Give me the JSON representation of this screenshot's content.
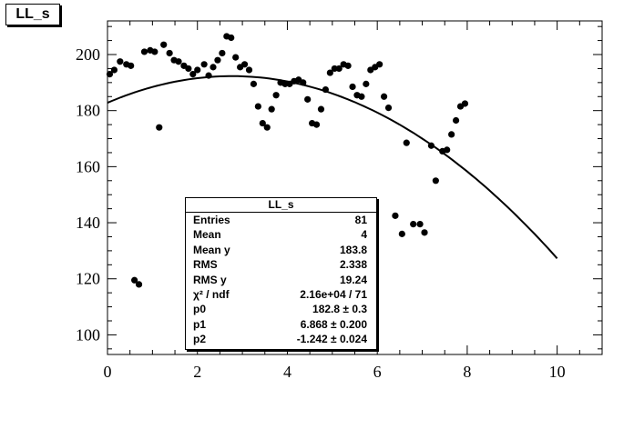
{
  "title": "LL_s",
  "chart_data": {
    "type": "scatter",
    "title": "LL_s",
    "xlabel": "",
    "ylabel": "",
    "xlim": [
      0,
      11
    ],
    "ylim": [
      93,
      212
    ],
    "x_ticks": [
      0,
      2,
      4,
      6,
      8,
      10
    ],
    "y_ticks": [
      100,
      120,
      140,
      160,
      180,
      200
    ],
    "grid": false,
    "points": [
      {
        "x": 0.05,
        "y": 193.0
      },
      {
        "x": 0.15,
        "y": 194.5
      },
      {
        "x": 0.28,
        "y": 197.5
      },
      {
        "x": 0.42,
        "y": 196.5
      },
      {
        "x": 0.52,
        "y": 196.0
      },
      {
        "x": 0.6,
        "y": 119.5
      },
      {
        "x": 0.7,
        "y": 118.0
      },
      {
        "x": 0.82,
        "y": 201.0
      },
      {
        "x": 0.95,
        "y": 201.5
      },
      {
        "x": 1.05,
        "y": 201.0
      },
      {
        "x": 1.15,
        "y": 174.0
      },
      {
        "x": 1.25,
        "y": 203.5
      },
      {
        "x": 1.38,
        "y": 200.5
      },
      {
        "x": 1.48,
        "y": 198.0
      },
      {
        "x": 1.58,
        "y": 197.5
      },
      {
        "x": 1.7,
        "y": 196.0
      },
      {
        "x": 1.8,
        "y": 195.0
      },
      {
        "x": 1.9,
        "y": 193.0
      },
      {
        "x": 2.0,
        "y": 194.5
      },
      {
        "x": 2.15,
        "y": 196.5
      },
      {
        "x": 2.25,
        "y": 192.5
      },
      {
        "x": 2.35,
        "y": 195.5
      },
      {
        "x": 2.45,
        "y": 198.0
      },
      {
        "x": 2.55,
        "y": 200.5
      },
      {
        "x": 2.65,
        "y": 206.5
      },
      {
        "x": 2.75,
        "y": 206.0
      },
      {
        "x": 2.85,
        "y": 199.0
      },
      {
        "x": 2.95,
        "y": 195.5
      },
      {
        "x": 3.05,
        "y": 196.5
      },
      {
        "x": 3.15,
        "y": 194.5
      },
      {
        "x": 3.25,
        "y": 189.5
      },
      {
        "x": 3.35,
        "y": 181.5
      },
      {
        "x": 3.45,
        "y": 175.5
      },
      {
        "x": 3.55,
        "y": 174.0
      },
      {
        "x": 3.65,
        "y": 180.5
      },
      {
        "x": 3.75,
        "y": 185.5
      },
      {
        "x": 3.85,
        "y": 190.0
      },
      {
        "x": 3.95,
        "y": 189.5
      },
      {
        "x": 4.05,
        "y": 189.5
      },
      {
        "x": 4.15,
        "y": 190.5
      },
      {
        "x": 4.25,
        "y": 191.0
      },
      {
        "x": 4.35,
        "y": 190.0
      },
      {
        "x": 4.45,
        "y": 184.0
      },
      {
        "x": 4.55,
        "y": 175.5
      },
      {
        "x": 4.65,
        "y": 175.0
      },
      {
        "x": 4.75,
        "y": 180.5
      },
      {
        "x": 4.85,
        "y": 187.5
      },
      {
        "x": 4.95,
        "y": 193.5
      },
      {
        "x": 5.05,
        "y": 195.0
      },
      {
        "x": 5.15,
        "y": 195.0
      },
      {
        "x": 5.25,
        "y": 196.5
      },
      {
        "x": 5.35,
        "y": 196.0
      },
      {
        "x": 5.45,
        "y": 188.5
      },
      {
        "x": 5.55,
        "y": 185.5
      },
      {
        "x": 5.65,
        "y": 185.0
      },
      {
        "x": 5.75,
        "y": 189.5
      },
      {
        "x": 5.85,
        "y": 194.5
      },
      {
        "x": 5.95,
        "y": 195.5
      },
      {
        "x": 6.05,
        "y": 196.5
      },
      {
        "x": 6.15,
        "y": 185.0
      },
      {
        "x": 6.25,
        "y": 181.0
      },
      {
        "x": 6.4,
        "y": 142.5
      },
      {
        "x": 6.55,
        "y": 136.0
      },
      {
        "x": 6.65,
        "y": 168.5
      },
      {
        "x": 6.8,
        "y": 139.5
      },
      {
        "x": 6.95,
        "y": 139.5
      },
      {
        "x": 7.05,
        "y": 136.5
      },
      {
        "x": 7.2,
        "y": 167.5
      },
      {
        "x": 7.3,
        "y": 155.0
      },
      {
        "x": 7.45,
        "y": 165.5
      },
      {
        "x": 7.55,
        "y": 166.0
      },
      {
        "x": 7.65,
        "y": 171.5
      },
      {
        "x": 7.75,
        "y": 176.5
      },
      {
        "x": 7.85,
        "y": 181.5
      },
      {
        "x": 7.95,
        "y": 182.5
      }
    ],
    "fit": {
      "function": "p0 + p1*x + p2*x^2",
      "p0": 182.8,
      "p1": 6.868,
      "p2": -1.242,
      "x_range": [
        0,
        10
      ]
    }
  },
  "stats": {
    "title": "LL_s",
    "rows": [
      {
        "label": "Entries",
        "value": "81"
      },
      {
        "label": "Mean",
        "value": "4"
      },
      {
        "label": "Mean y",
        "value": "183.8"
      },
      {
        "label": "RMS",
        "value": "2.338"
      },
      {
        "label": "RMS y",
        "value": "19.24"
      },
      {
        "label": "χ² / ndf",
        "value": "2.16e+04 / 71"
      },
      {
        "label": "p0",
        "value": "182.8 ± 0.3"
      },
      {
        "label": "p1",
        "value": "6.868 ± 0.200"
      },
      {
        "label": "p2",
        "value": "-1.242 ± 0.024"
      }
    ]
  }
}
